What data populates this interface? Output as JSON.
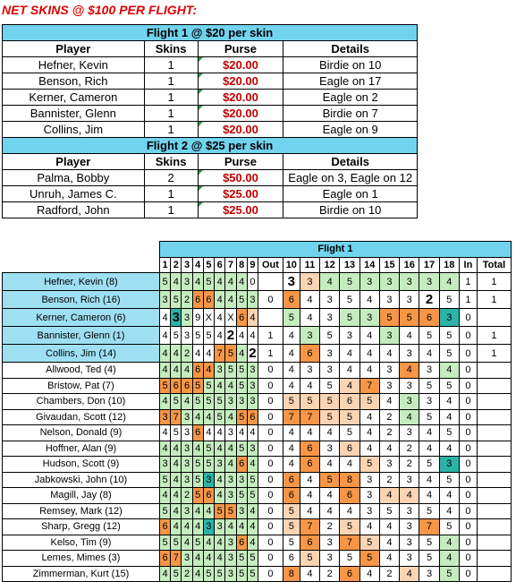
{
  "title": "NET SKINS @ $100 PER FLIGHT:",
  "summary": {
    "columns": [
      "Player",
      "Skins",
      "Purse",
      "Details"
    ],
    "flights": [
      {
        "header": "Flight 1 @ $20 per skin",
        "rows": [
          {
            "player": "Hefner, Kevin",
            "skins": "1",
            "purse": "$20.00",
            "details": "Birdie on 10"
          },
          {
            "player": "Benson, Rich",
            "skins": "1",
            "purse": "$20.00",
            "details": "Eagle on 17"
          },
          {
            "player": "Kerner, Cameron",
            "skins": "1",
            "purse": "$20.00",
            "details": "Eagle on 2"
          },
          {
            "player": "Bannister, Glenn",
            "skins": "1",
            "purse": "$20.00",
            "details": "Birdie on 7"
          },
          {
            "player": "Collins, Jim",
            "skins": "1",
            "purse": "$20.00",
            "details": "Eagle on 9"
          }
        ]
      },
      {
        "header": "Flight 2 @ $25 per skin",
        "rows": [
          {
            "player": "Palma, Bobby",
            "skins": "2",
            "purse": "$50.00",
            "details": "Eagle on 3, Eagle on 12"
          },
          {
            "player": "Unruh, James C.",
            "skins": "1",
            "purse": "$25.00",
            "details": "Eagle on 1"
          },
          {
            "player": "Radford, John",
            "skins": "1",
            "purse": "$25.00",
            "details": "Birdie on 10"
          }
        ]
      }
    ]
  },
  "scorecard": {
    "header": "Flight 1",
    "columns": [
      "1",
      "2",
      "3",
      "4",
      "5",
      "6",
      "7",
      "8",
      "9",
      "Out",
      "10",
      "11",
      "12",
      "13",
      "14",
      "15",
      "16",
      "17",
      "18",
      "In",
      "Total"
    ],
    "rows": [
      {
        "name": "Hefner, Kevin (8)",
        "scores": [
          "5",
          "4",
          "3",
          "4",
          "5",
          "4",
          "4",
          "4",
          "0",
          "",
          "3",
          "3",
          "4",
          "5",
          "3",
          "3",
          "3",
          "3",
          "4",
          "1",
          "1"
        ],
        "colors": [
          "g",
          "g",
          "g",
          "g",
          "g",
          "g",
          "g",
          "g",
          "",
          "",
          "",
          "lo",
          "g",
          "g",
          "g",
          "g",
          "g",
          "g",
          "g",
          "",
          ""
        ],
        "bold": [
          10
        ],
        "win": true
      },
      {
        "name": "Benson, Rich (16)",
        "scores": [
          "3",
          "5",
          "2",
          "6",
          "6",
          "4",
          "4",
          "5",
          "3",
          "0",
          "6",
          "4",
          "3",
          "5",
          "4",
          "3",
          "3",
          "2",
          "5",
          "1",
          "1"
        ],
        "colors": [
          "g",
          "g",
          "g",
          "o",
          "o",
          "g",
          "g",
          "g",
          "g",
          "",
          "o",
          "",
          "",
          "",
          "",
          "",
          "",
          "",
          "",
          "",
          ""
        ],
        "bold": [
          17
        ],
        "win": true
      },
      {
        "name": "Kerner, Cameron (6)",
        "scores": [
          "4",
          "3",
          "3",
          "9",
          "X",
          "4",
          "X",
          "6",
          "4",
          "",
          "5",
          "4",
          "3",
          "5",
          "3",
          "5",
          "5",
          "6",
          "3",
          "0",
          ""
        ],
        "colors": [
          "",
          "t",
          "g",
          "",
          "",
          "",
          "",
          "o",
          "lo",
          "",
          "g",
          "",
          "",
          "g",
          "g",
          "o",
          "o",
          "o",
          "t",
          "",
          ""
        ],
        "bold": [
          1
        ],
        "win": true
      },
      {
        "name": "Bannister, Glenn (1)",
        "scores": [
          "4",
          "5",
          "3",
          "5",
          "5",
          "4",
          "2",
          "4",
          "4",
          "1",
          "4",
          "3",
          "5",
          "3",
          "4",
          "3",
          "4",
          "5",
          "5",
          "0",
          "1"
        ],
        "colors": [
          "",
          "",
          "",
          "",
          "",
          "",
          "",
          "",
          "",
          "",
          "",
          "g",
          "",
          "",
          "",
          "g",
          "",
          "",
          "",
          "",
          ""
        ],
        "bold": [
          6
        ],
        "win": true
      },
      {
        "name": "Collins, Jim (14)",
        "scores": [
          "4",
          "4",
          "2",
          "4",
          "4",
          "7",
          "5",
          "4",
          "2",
          "1",
          "4",
          "6",
          "3",
          "4",
          "4",
          "4",
          "3",
          "4",
          "5",
          "0",
          "1"
        ],
        "colors": [
          "g",
          "g",
          "g",
          "",
          "",
          "o",
          "o",
          "g",
          "",
          "",
          "",
          "o",
          "",
          "",
          "",
          "",
          "",
          "",
          "",
          "",
          ""
        ],
        "bold": [
          8
        ],
        "win": true
      },
      {
        "name": "Allwood, Ted (4)",
        "scores": [
          "4",
          "4",
          "4",
          "6",
          "4",
          "3",
          "5",
          "5",
          "3",
          "0",
          "4",
          "3",
          "3",
          "4",
          "4",
          "3",
          "4",
          "3",
          "4",
          "0",
          ""
        ],
        "colors": [
          "g",
          "g",
          "g",
          "o",
          "o",
          "g",
          "g",
          "g",
          "g",
          "",
          "",
          "",
          "",
          "",
          "",
          "",
          "o",
          "",
          "g",
          "",
          ""
        ],
        "bold": [],
        "win": false
      },
      {
        "name": "Bristow, Pat (7)",
        "scores": [
          "5",
          "6",
          "6",
          "5",
          "5",
          "4",
          "4",
          "5",
          "3",
          "0",
          "4",
          "4",
          "5",
          "4",
          "7",
          "3",
          "3",
          "5",
          "5",
          "0",
          ""
        ],
        "colors": [
          "o",
          "o",
          "o",
          "o",
          "g",
          "g",
          "g",
          "g",
          "g",
          "",
          "",
          "",
          "",
          "lo",
          "o",
          "",
          "",
          "",
          "",
          "",
          ""
        ],
        "bold": [],
        "win": false
      },
      {
        "name": "Chambers, Don (10)",
        "scores": [
          "4",
          "5",
          "4",
          "5",
          "5",
          "5",
          "3",
          "3",
          "3",
          "0",
          "5",
          "5",
          "5",
          "6",
          "5",
          "4",
          "3",
          "3",
          "4",
          "0",
          ""
        ],
        "colors": [
          "g",
          "g",
          "g",
          "g",
          "g",
          "g",
          "g",
          "g",
          "g",
          "",
          "lo",
          "lo",
          "lo",
          "lo",
          "lo",
          "",
          "g",
          "",
          "",
          "",
          ""
        ],
        "bold": [],
        "win": false
      },
      {
        "name": "Givaudan, Scott (12)",
        "scores": [
          "3",
          "7",
          "3",
          "4",
          "4",
          "5",
          "4",
          "5",
          "6",
          "0",
          "7",
          "7",
          "5",
          "5",
          "4",
          "2",
          "4",
          "5",
          "4",
          "0",
          ""
        ],
        "colors": [
          "o",
          "o",
          "g",
          "g",
          "g",
          "g",
          "g",
          "o",
          "o",
          "",
          "o",
          "o",
          "lo",
          "lo",
          "",
          "",
          "g",
          "",
          "",
          "",
          ""
        ],
        "bold": [],
        "win": false
      },
      {
        "name": "Nelson, Donald (9)",
        "scores": [
          "4",
          "5",
          "3",
          "6",
          "4",
          "4",
          "3",
          "4",
          "4",
          "0",
          "4",
          "4",
          "4",
          "5",
          "4",
          "2",
          "3",
          "4",
          "5",
          "0",
          ""
        ],
        "colors": [
          "",
          "",
          "",
          "o",
          "",
          "",
          "",
          "",
          "",
          "",
          "",
          "",
          "",
          "",
          "",
          "",
          "",
          "",
          "",
          "",
          ""
        ],
        "bold": [],
        "win": false
      },
      {
        "name": "Hoffner, Alan (9)",
        "scores": [
          "4",
          "4",
          "3",
          "4",
          "5",
          "4",
          "4",
          "5",
          "3",
          "0",
          "4",
          "6",
          "3",
          "6",
          "4",
          "4",
          "2",
          "4",
          "4",
          "0",
          ""
        ],
        "colors": [
          "g",
          "g",
          "g",
          "g",
          "g",
          "g",
          "g",
          "g",
          "g",
          "",
          "",
          "o",
          "",
          "lo",
          "",
          "",
          "",
          "",
          "",
          "",
          ""
        ],
        "bold": [],
        "win": false
      },
      {
        "name": "Hudson, Scott (9)",
        "scores": [
          "3",
          "4",
          "3",
          "5",
          "5",
          "3",
          "4",
          "6",
          "4",
          "0",
          "4",
          "6",
          "4",
          "4",
          "5",
          "3",
          "2",
          "5",
          "3",
          "0",
          ""
        ],
        "colors": [
          "g",
          "g",
          "g",
          "g",
          "g",
          "g",
          "g",
          "o",
          "g",
          "",
          "",
          "o",
          "",
          "",
          "lo",
          "",
          "",
          "",
          "t",
          "",
          ""
        ],
        "bold": [],
        "win": false
      },
      {
        "name": "Jabkowski, John (10)",
        "scores": [
          "5",
          "4",
          "3",
          "5",
          "3",
          "4",
          "3",
          "3",
          "5",
          "0",
          "6",
          "4",
          "5",
          "8",
          "3",
          "2",
          "3",
          "4",
          "5",
          "0",
          ""
        ],
        "colors": [
          "g",
          "g",
          "g",
          "g",
          "t",
          "g",
          "g",
          "g",
          "g",
          "",
          "o",
          "",
          "o",
          "o",
          "",
          "",
          "",
          "",
          "",
          "",
          ""
        ],
        "bold": [],
        "win": false
      },
      {
        "name": "Magill, Jay (8)",
        "scores": [
          "4",
          "4",
          "2",
          "5",
          "6",
          "4",
          "3",
          "5",
          "5",
          "0",
          "6",
          "4",
          "4",
          "6",
          "3",
          "4",
          "4",
          "4",
          "4",
          "0",
          ""
        ],
        "colors": [
          "g",
          "g",
          "g",
          "o",
          "o",
          "g",
          "g",
          "g",
          "g",
          "",
          "o",
          "",
          "",
          "o",
          "",
          "lo",
          "lo",
          "",
          "",
          "",
          ""
        ],
        "bold": [],
        "win": false
      },
      {
        "name": "Remsey, Mark (12)",
        "scores": [
          "5",
          "4",
          "3",
          "4",
          "4",
          "5",
          "5",
          "3",
          "4",
          "0",
          "5",
          "4",
          "4",
          "4",
          "3",
          "5",
          "3",
          "5",
          "4",
          "0",
          ""
        ],
        "colors": [
          "g",
          "g",
          "g",
          "g",
          "g",
          "o",
          "o",
          "g",
          "g",
          "",
          "lo",
          "",
          "",
          "",
          "",
          "",
          "",
          "",
          "",
          "",
          ""
        ],
        "bold": [],
        "win": false
      },
      {
        "name": "Sharp, Gregg (12)",
        "scores": [
          "6",
          "4",
          "4",
          "4",
          "3",
          "3",
          "4",
          "4",
          "4",
          "0",
          "5",
          "7",
          "2",
          "5",
          "4",
          "4",
          "3",
          "7",
          "5",
          "0",
          ""
        ],
        "colors": [
          "o",
          "g",
          "g",
          "g",
          "t",
          "g",
          "g",
          "g",
          "g",
          "",
          "lo",
          "o",
          "",
          "lo",
          "",
          "",
          "",
          "o",
          "",
          "",
          ""
        ],
        "bold": [],
        "win": false
      },
      {
        "name": "Kelso, Tim (9)",
        "scores": [
          "5",
          "5",
          "4",
          "5",
          "4",
          "4",
          "3",
          "6",
          "4",
          "0",
          "5",
          "6",
          "3",
          "7",
          "5",
          "4",
          "3",
          "5",
          "4",
          "0",
          ""
        ],
        "colors": [
          "g",
          "g",
          "g",
          "g",
          "g",
          "g",
          "g",
          "o",
          "g",
          "",
          "",
          "o",
          "",
          "o",
          "lo",
          "",
          "",
          "",
          "g",
          "",
          ""
        ],
        "bold": [],
        "win": false
      },
      {
        "name": "Lemes, Mimes (3)",
        "scores": [
          "6",
          "7",
          "3",
          "4",
          "4",
          "4",
          "3",
          "5",
          "5",
          "0",
          "6",
          "5",
          "3",
          "5",
          "5",
          "4",
          "3",
          "5",
          "4",
          "0",
          ""
        ],
        "colors": [
          "o",
          "o",
          "g",
          "g",
          "g",
          "g",
          "g",
          "g",
          "g",
          "",
          "",
          "lo",
          "",
          "",
          "o",
          "",
          "",
          "",
          "g",
          "",
          ""
        ],
        "bold": [],
        "win": false
      },
      {
        "name": "Zimmerman, Kurt (15)",
        "scores": [
          "4",
          "5",
          "2",
          "4",
          "5",
          "5",
          "3",
          "5",
          "5",
          "0",
          "8",
          "4",
          "2",
          "6",
          "4",
          "2",
          "4",
          "3",
          "5",
          "0",
          ""
        ],
        "colors": [
          "g",
          "g",
          "g",
          "g",
          "g",
          "g",
          "g",
          "g",
          "g",
          "",
          "o",
          "",
          "",
          "o",
          "",
          "",
          "lo",
          "",
          "g",
          "",
          ""
        ],
        "bold": [],
        "win": false
      }
    ]
  }
}
